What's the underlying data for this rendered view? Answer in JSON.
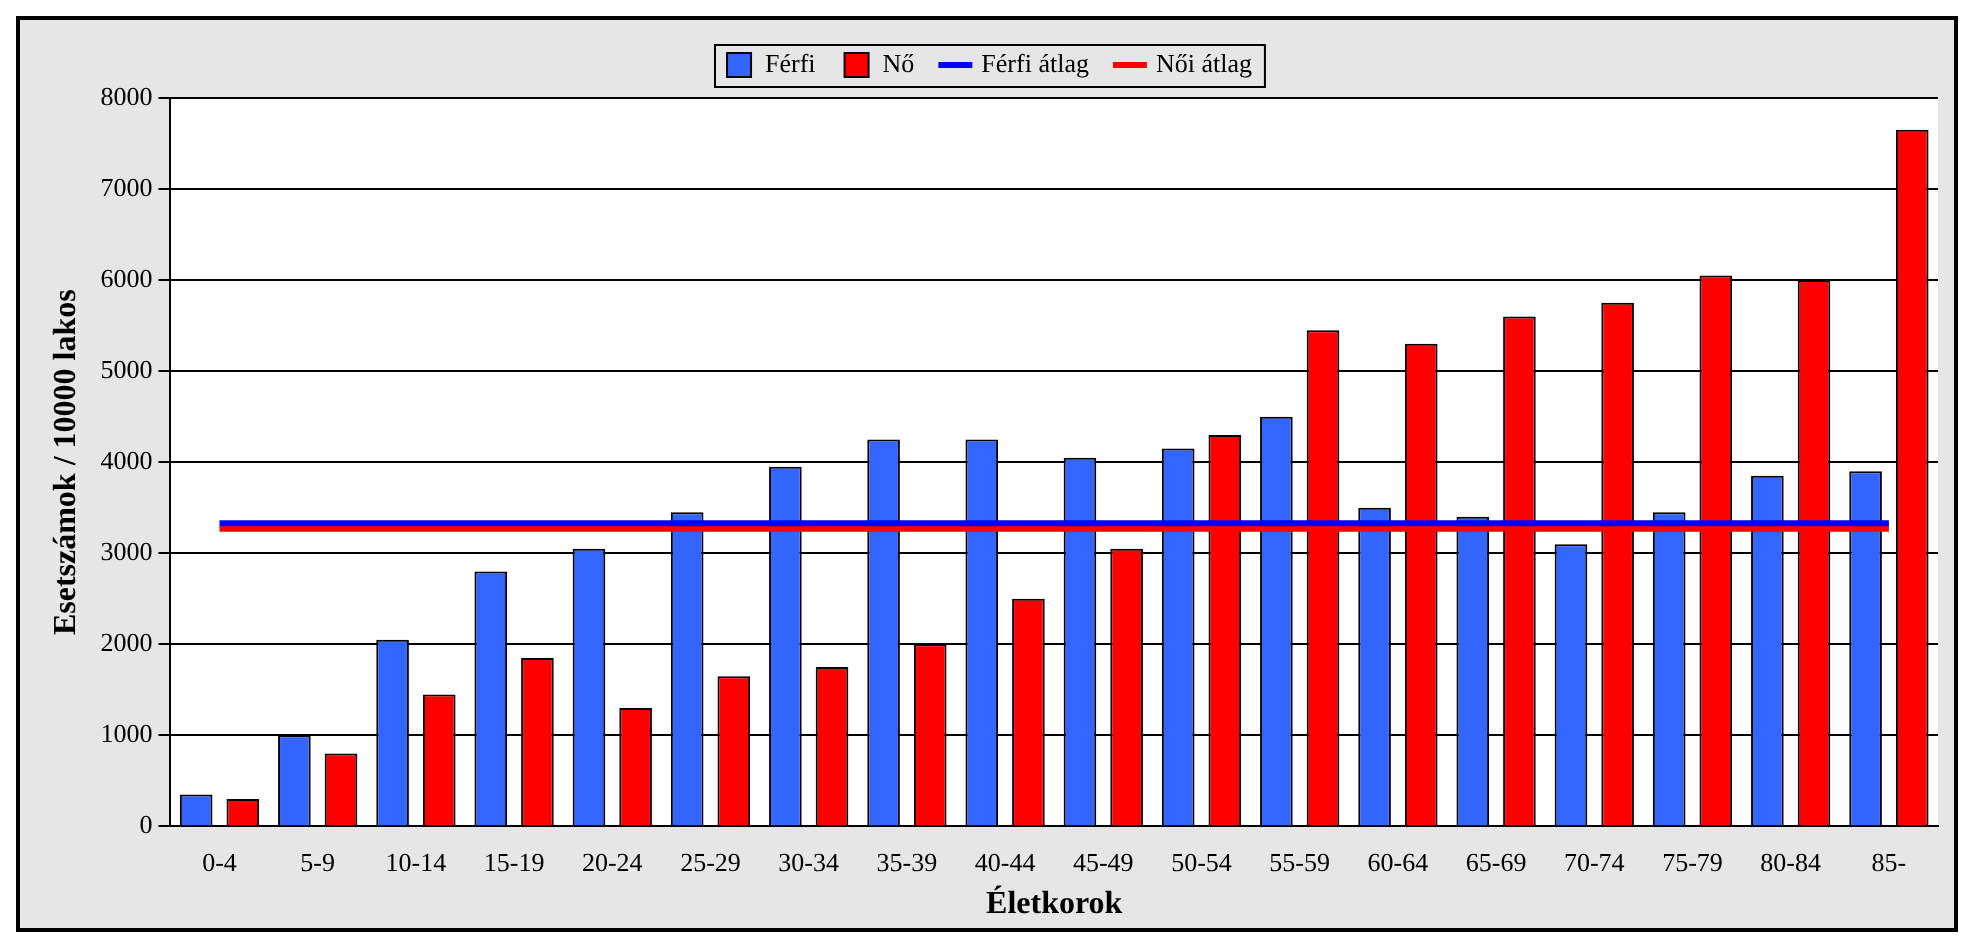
{
  "chart_data": {
    "type": "bar",
    "xlabel": "Életkorok",
    "ylabel": "Esetszámok / 10000 lakos",
    "categories": [
      "0-4",
      "5-9",
      "10-14",
      "15-19",
      "20-24",
      "25-29",
      "30-34",
      "35-39",
      "40-44",
      "45-49",
      "50-54",
      "55-59",
      "60-64",
      "65-69",
      "70-74",
      "75-79",
      "80-84",
      "85-"
    ],
    "series": [
      {
        "name": "Férfi",
        "color": "#3366ff",
        "values": [
          350,
          1000,
          2050,
          2800,
          3050,
          3450,
          3950,
          4250,
          4250,
          4050,
          4150,
          4500,
          3500,
          3400,
          3100,
          3450,
          3850,
          3900
        ]
      },
      {
        "name": "Nő",
        "color": "#ff0000",
        "values": [
          300,
          800,
          1450,
          1850,
          1300,
          1650,
          1750,
          2000,
          2500,
          3050,
          4300,
          5450,
          5300,
          5600,
          5750,
          6050,
          6000,
          7650
        ]
      },
      {
        "name": "Férfi átlag",
        "type": "line",
        "color": "#0000ff",
        "values": [
          3330,
          3330,
          3330,
          3330,
          3330,
          3330,
          3330,
          3330,
          3330,
          3330,
          3330,
          3330,
          3330,
          3330,
          3330,
          3330,
          3330,
          3330
        ]
      },
      {
        "name": "Női átlag",
        "type": "line",
        "color": "#ff0000",
        "values": [
          3270,
          3270,
          3270,
          3270,
          3270,
          3270,
          3270,
          3270,
          3270,
          3270,
          3270,
          3270,
          3270,
          3270,
          3270,
          3270,
          3270,
          3270
        ]
      }
    ],
    "ylim": [
      0,
      8000
    ],
    "yticks": [
      0,
      1000,
      2000,
      3000,
      4000,
      5000,
      6000,
      7000,
      8000
    ],
    "grid": "y",
    "legend": "top",
    "marker": "none"
  }
}
